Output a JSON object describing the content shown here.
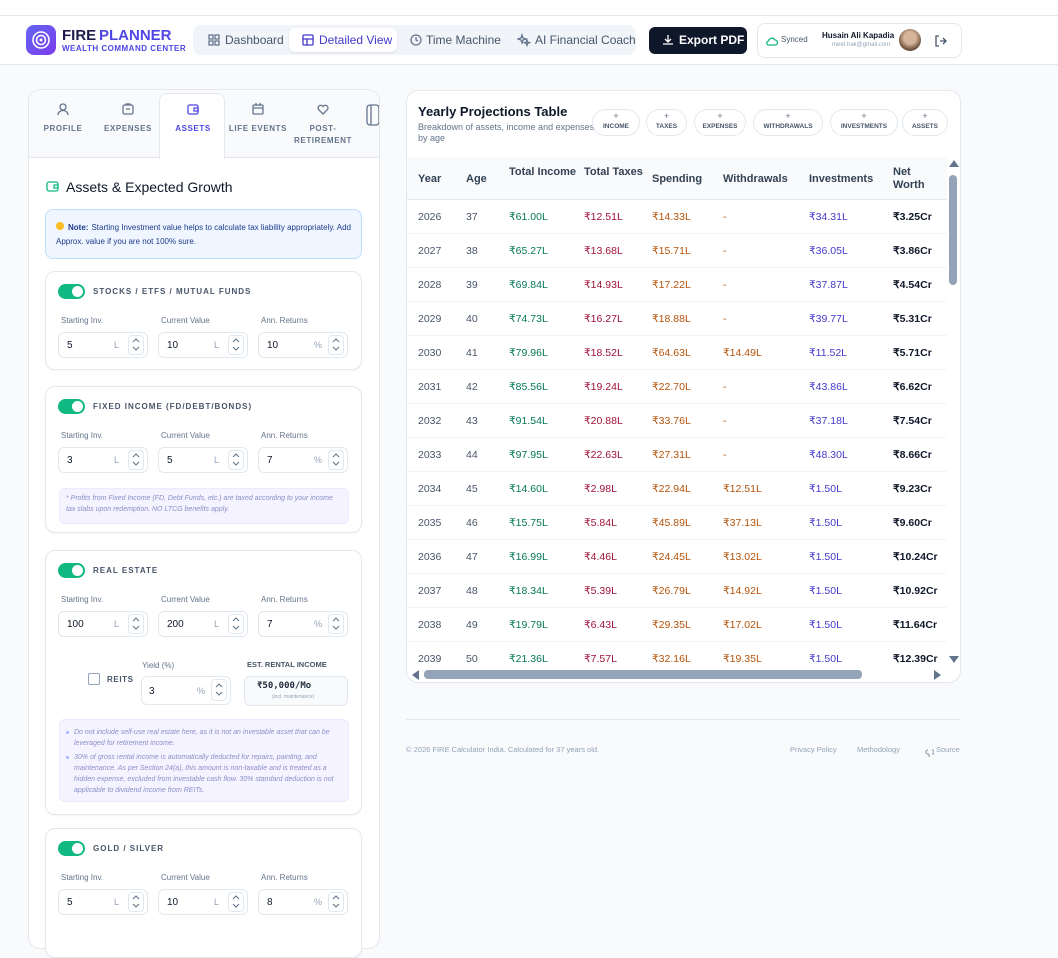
{
  "header": {
    "brand_a": "FIRE",
    "brand_b": "PLANNER",
    "tagline": "WEALTH COMMAND CENTER",
    "nav": [
      "Dashboard",
      "Detailed View",
      "Time Machine",
      "AI Financial Coach"
    ],
    "export": "Export PDF",
    "sync": "Synced",
    "user_name": "Husain Ali Kapadia",
    "user_email": "meet.hak@gmail.com"
  },
  "sidebar": {
    "tabs": [
      "PROFILE",
      "EXPENSES",
      "ASSETS",
      "LIFE EVENTS",
      "POST-RETIREMENT"
    ],
    "section_title": "Assets & Expected Growth",
    "note_label": "Note:",
    "note_text": "Starting Investment value helps to calculate tax liability appropriately. Add Approx. value if you are not 100% sure.",
    "assets": [
      {
        "name": "STOCKS / ETFS / MUTUAL FUNDS",
        "fields": [
          {
            "label": "Starting Inv.",
            "value": "5",
            "unit": "L"
          },
          {
            "label": "Current Value",
            "value": "10",
            "unit": "L"
          },
          {
            "label": "Ann. Returns",
            "value": "10",
            "unit": "%"
          }
        ]
      },
      {
        "name": "FIXED INCOME (FD/DEBT/BONDS)",
        "fields": [
          {
            "label": "Starting Inv.",
            "value": "3",
            "unit": "L"
          },
          {
            "label": "Current Value",
            "value": "5",
            "unit": "L"
          },
          {
            "label": "Ann. Returns",
            "value": "7",
            "unit": "%"
          }
        ],
        "note": "* Profits from Fixed Income (FD, Debt Funds, etc.) are taxed according to your income tax slabs upon redemption. NO LTCG benefits apply."
      },
      {
        "name": "REAL ESTATE",
        "fields": [
          {
            "label": "Starting Inv.",
            "value": "100",
            "unit": "L"
          },
          {
            "label": "Current Value",
            "value": "200",
            "unit": "L"
          },
          {
            "label": "Ann. Returns",
            "value": "7",
            "unit": "%"
          }
        ],
        "reits_label": "REITS",
        "yield_label": "Yield (%)",
        "yield_value": "3",
        "yield_unit": "%",
        "rental_label": "EST. RENTAL INCOME",
        "rental_value": "₹50,000/Mo",
        "rental_sub": "(incl. maintenance)",
        "notes": [
          "Do not include self-use real estate here, as it is not an investable asset that can be leveraged for retirement income.",
          "30% of gross rental income is automatically deducted for repairs, painting, and maintenance. As per Section 24(a), this amount is non-taxable and is treated as a hidden expense, excluded from investable cash flow. 30% standard deduction is not applicable to dividend income from REITs."
        ]
      },
      {
        "name": "GOLD / SILVER",
        "fields": [
          {
            "label": "Starting Inv.",
            "value": "5",
            "unit": "L"
          },
          {
            "label": "Current Value",
            "value": "10",
            "unit": "L"
          },
          {
            "label": "Ann. Returns",
            "value": "8",
            "unit": "%"
          }
        ]
      }
    ]
  },
  "table": {
    "title": "Yearly Projections Table",
    "subtitle": "Breakdown of assets, income and expenses by age",
    "toggle_icon": "+",
    "toggles": [
      "INCOME",
      "TAXES",
      "EXPENSES",
      "WITHDRAWALS",
      "INVESTMENTS",
      "ASSETS"
    ],
    "columns": [
      "Year",
      "Age",
      "Total Income",
      "Total Taxes",
      "Spending",
      "Withdrawals",
      "Investments",
      "Net Worth"
    ],
    "rows": [
      [
        "2026",
        "37",
        "₹61.00L",
        "₹12.51L",
        "₹14.33L",
        "-",
        "₹34.31L",
        "₹3.25Cr"
      ],
      [
        "2027",
        "38",
        "₹65.27L",
        "₹13.68L",
        "₹15.71L",
        "-",
        "₹36.05L",
        "₹3.86Cr"
      ],
      [
        "2028",
        "39",
        "₹69.84L",
        "₹14.93L",
        "₹17.22L",
        "-",
        "₹37.87L",
        "₹4.54Cr"
      ],
      [
        "2029",
        "40",
        "₹74.73L",
        "₹16.27L",
        "₹18.88L",
        "-",
        "₹39.77L",
        "₹5.31Cr"
      ],
      [
        "2030",
        "41",
        "₹79.96L",
        "₹18.52L",
        "₹64.63L",
        "₹14.49L",
        "₹11.52L",
        "₹5.71Cr"
      ],
      [
        "2031",
        "42",
        "₹85.56L",
        "₹19.24L",
        "₹22.70L",
        "-",
        "₹43.86L",
        "₹6.62Cr"
      ],
      [
        "2032",
        "43",
        "₹91.54L",
        "₹20.88L",
        "₹33.76L",
        "-",
        "₹37.18L",
        "₹7.54Cr"
      ],
      [
        "2033",
        "44",
        "₹97.95L",
        "₹22.63L",
        "₹27.31L",
        "-",
        "₹48.30L",
        "₹8.66Cr"
      ],
      [
        "2034",
        "45",
        "₹14.60L",
        "₹2.98L",
        "₹22.94L",
        "₹12.51L",
        "₹1.50L",
        "₹9.23Cr"
      ],
      [
        "2035",
        "46",
        "₹15.75L",
        "₹5.84L",
        "₹45.89L",
        "₹37.13L",
        "₹1.50L",
        "₹9.60Cr"
      ],
      [
        "2036",
        "47",
        "₹16.99L",
        "₹4.46L",
        "₹24.45L",
        "₹13.02L",
        "₹1.50L",
        "₹10.24Cr"
      ],
      [
        "2037",
        "48",
        "₹18.34L",
        "₹5.39L",
        "₹26.79L",
        "₹14.92L",
        "₹1.50L",
        "₹10.92Cr"
      ],
      [
        "2038",
        "49",
        "₹19.79L",
        "₹6.43L",
        "₹29.35L",
        "₹17.02L",
        "₹1.50L",
        "₹11.64Cr"
      ],
      [
        "2039",
        "50",
        "₹21.36L",
        "₹7.57L",
        "₹32.16L",
        "₹19.35L",
        "₹1.50L",
        "₹12.39Cr"
      ]
    ]
  },
  "footer": {
    "copyright": "© 2026 FIRE Calculator India. Calculated for 37 years old.",
    "links": [
      "Privacy Policy",
      "Methodology",
      "Source"
    ]
  }
}
